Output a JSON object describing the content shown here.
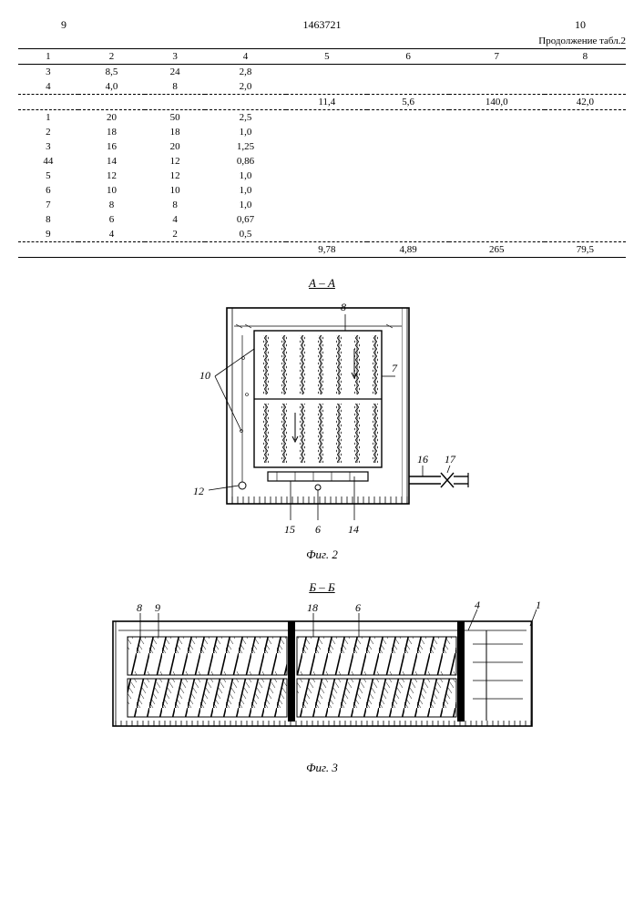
{
  "doc": {
    "page_left": "9",
    "doc_number": "1463721",
    "page_right": "10",
    "continuation": "Продолжение табл.2"
  },
  "table": {
    "headers": [
      "1",
      "2",
      "3",
      "4",
      "5",
      "6",
      "7",
      "8"
    ],
    "block1": [
      [
        "3",
        "8,5",
        "24",
        "2,8",
        "",
        "",
        "",
        ""
      ],
      [
        "4",
        "4,0",
        "8",
        "2,0",
        "",
        "",
        "",
        ""
      ]
    ],
    "sum1": [
      "",
      "",
      "",
      "",
      "11,4",
      "5,6",
      "140,0",
      "42,0"
    ],
    "block2": [
      [
        "1",
        "20",
        "50",
        "2,5",
        "",
        "",
        "",
        ""
      ],
      [
        "2",
        "18",
        "18",
        "1,0",
        "",
        "",
        "",
        ""
      ],
      [
        "3",
        "16",
        "20",
        "1,25",
        "",
        "",
        "",
        ""
      ],
      [
        "44",
        "14",
        "12",
        "0,86",
        "",
        "",
        "",
        ""
      ],
      [
        "5",
        "12",
        "12",
        "1,0",
        "",
        "",
        "",
        ""
      ],
      [
        "6",
        "10",
        "10",
        "1,0",
        "",
        "",
        "",
        ""
      ],
      [
        "7",
        "8",
        "8",
        "1,0",
        "",
        "",
        "",
        ""
      ],
      [
        "8",
        "6",
        "4",
        "0,67",
        "",
        "",
        "",
        ""
      ],
      [
        "9",
        "4",
        "2",
        "0,5",
        "",
        "",
        "",
        ""
      ]
    ],
    "sum2": [
      "",
      "",
      "",
      "",
      "9,78",
      "4,89",
      "265",
      "79,5"
    ]
  },
  "fig2": {
    "section": "А – А",
    "caption": "Фиг. 2",
    "labels": {
      "l8": "8",
      "l10": "10",
      "l7": "7",
      "l12": "12",
      "l15": "15",
      "l6": "6",
      "l14": "14",
      "l16": "16",
      "l17": "17"
    }
  },
  "fig3": {
    "section": "Б – Б",
    "caption": "Фиг. 3",
    "labels": {
      "l8": "8",
      "l9": "9",
      "l18": "18",
      "l6": "6",
      "l4": "4",
      "l1": "1"
    }
  },
  "style": {
    "stroke": "#000000",
    "stroke_w": 1.4,
    "hatch_spacing": 6
  }
}
